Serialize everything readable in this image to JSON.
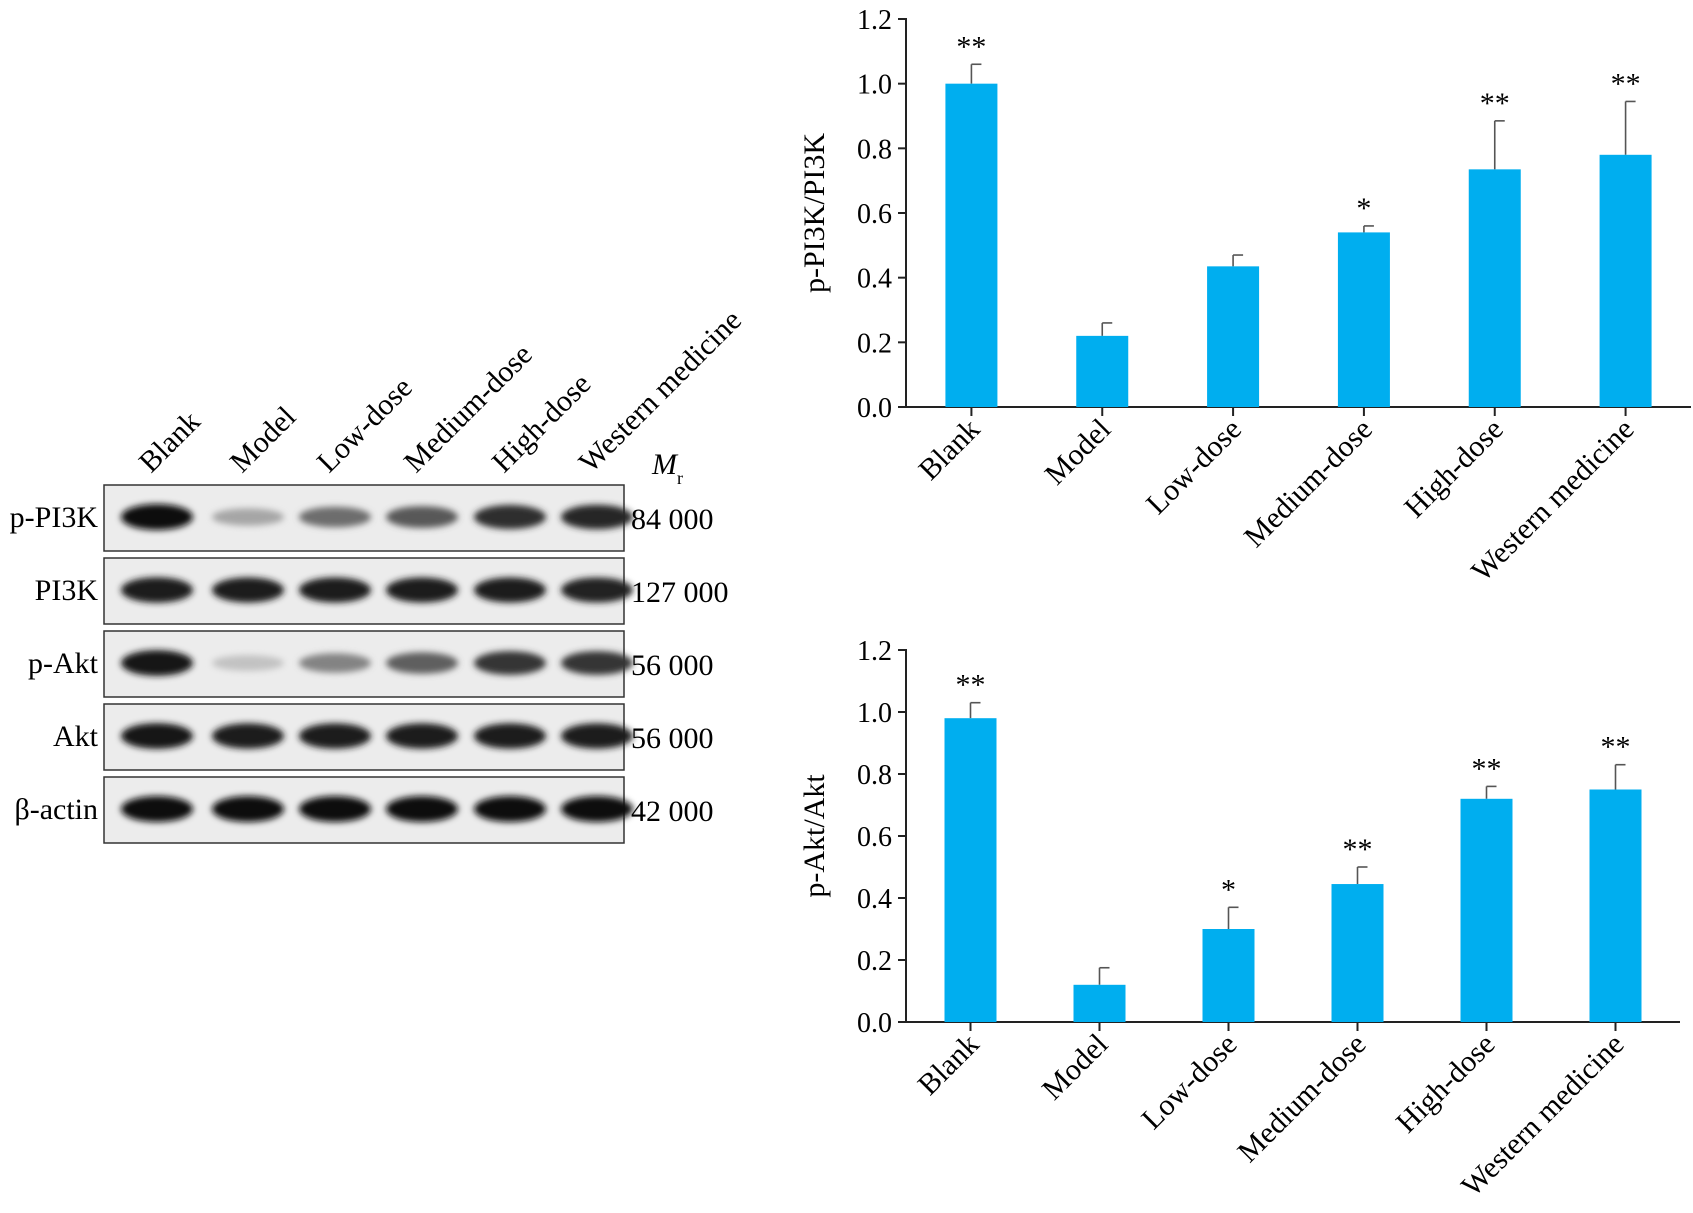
{
  "blot": {
    "lanes": [
      "Blank",
      "Model",
      "Low-dose",
      "Medium-dose",
      "High-dose",
      "Western medicine"
    ],
    "mr_symbol": "M",
    "mr_subscript": "r",
    "rows": [
      {
        "label": "p-PI3K",
        "mw": "84 000",
        "intensity": [
          1.0,
          0.28,
          0.55,
          0.65,
          0.85,
          0.88
        ]
      },
      {
        "label": "PI3K",
        "mw": "127 000",
        "intensity": [
          0.95,
          0.93,
          0.93,
          0.93,
          0.93,
          0.92
        ]
      },
      {
        "label": "p-Akt",
        "mw": "56 000",
        "intensity": [
          0.98,
          0.15,
          0.45,
          0.62,
          0.82,
          0.82
        ]
      },
      {
        "label": "Akt",
        "mw": "56 000",
        "intensity": [
          0.97,
          0.95,
          0.95,
          0.95,
          0.95,
          0.95
        ]
      },
      {
        "label": "β-actin",
        "mw": "42 000",
        "intensity": [
          1.0,
          1.0,
          1.0,
          1.0,
          1.0,
          1.0
        ]
      }
    ]
  },
  "chart_data": [
    {
      "type": "bar",
      "categories": [
        "Blank",
        "Model",
        "Low-dose",
        "Medium-dose",
        "High-dose",
        "Western medicine"
      ],
      "values": [
        1.0,
        0.22,
        0.435,
        0.54,
        0.735,
        0.78
      ],
      "errors": [
        0.06,
        0.04,
        0.035,
        0.02,
        0.15,
        0.165
      ],
      "significance": [
        "**",
        "",
        "",
        "*",
        "**",
        "**"
      ],
      "ylabel": "p-PI3K/PI3K",
      "ylim": [
        0,
        1.2
      ],
      "yticks": [
        "0.0",
        "0.2",
        "0.4",
        "0.6",
        "0.8",
        "1.0",
        "1.2"
      ],
      "bar_color": "#00aeef"
    },
    {
      "type": "bar",
      "categories": [
        "Blank",
        "Model",
        "Low-dose",
        "Medium-dose",
        "High-dose",
        "Western medicine"
      ],
      "values": [
        0.98,
        0.12,
        0.3,
        0.445,
        0.72,
        0.75
      ],
      "errors": [
        0.05,
        0.055,
        0.07,
        0.055,
        0.04,
        0.08
      ],
      "significance": [
        "**",
        "",
        "*",
        "**",
        "**",
        "**"
      ],
      "ylabel": "p-Akt/Akt",
      "ylim": [
        0,
        1.2
      ],
      "yticks": [
        "0.0",
        "0.2",
        "0.4",
        "0.6",
        "0.8",
        "1.0",
        "1.2"
      ],
      "bar_color": "#00aeef"
    }
  ]
}
